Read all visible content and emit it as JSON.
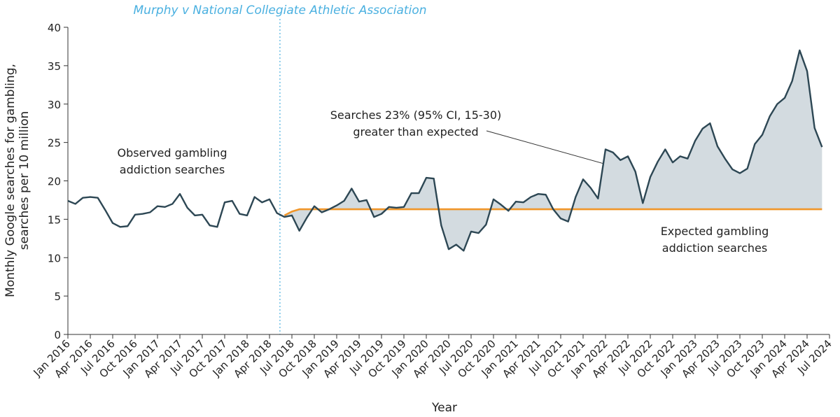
{
  "chart_data": {
    "type": "line",
    "xlabel": "Year",
    "ylabel": [
      "Monthly Google searches for gambling,",
      "searches per 10 million"
    ],
    "event_label": "Murphy v National Collegiate Athletic Association",
    "annotations": {
      "observed": [
        "Observed gambling",
        "addiction searches"
      ],
      "excess": [
        "Searches 23% (95% CI, 15-30)",
        "greater than expected"
      ],
      "expected": [
        "Expected gambling",
        "addiction searches"
      ]
    },
    "categories": [
      "Jan 2016",
      null,
      null,
      "Apr 2016",
      null,
      null,
      "Jul 2016",
      null,
      null,
      "Oct 2016",
      null,
      null,
      "Jan 2017",
      null,
      null,
      "Apr 2017",
      null,
      null,
      "Jul 2017",
      null,
      null,
      "Oct 2017",
      null,
      null,
      "Jan 2018",
      null,
      null,
      "Apr 2018",
      null,
      null,
      "Jul 2018",
      null,
      null,
      "Oct 2018",
      null,
      null,
      "Jan 2019",
      null,
      null,
      "Apr 2019",
      null,
      null,
      "Jul 2019",
      null,
      null,
      "Oct 2019",
      null,
      null,
      "Jan 2020",
      null,
      null,
      "Apr 2020",
      null,
      null,
      "Jul 2020",
      null,
      null,
      "Oct 2020",
      null,
      null,
      "Jan 2021",
      null,
      null,
      "Apr 2021",
      null,
      null,
      "Jul 2021",
      null,
      null,
      "Oct 2021",
      null,
      null,
      "Jan 2022",
      null,
      null,
      "Apr 2022",
      null,
      null,
      "Jul 2022",
      null,
      null,
      "Oct 2022",
      null,
      null,
      "Jan 2023",
      null,
      null,
      "Apr 2023",
      null,
      null,
      "Jul 2023",
      null,
      null,
      "Oct 2023",
      null,
      null,
      "Jan 2024",
      null,
      null,
      "Apr 2024",
      null,
      null,
      "Jul 2024"
    ],
    "series": [
      {
        "name": "Observed",
        "color": "#2d4754",
        "values": [
          17.4,
          17.0,
          17.8,
          17.9,
          17.8,
          16.2,
          14.5,
          14.0,
          14.1,
          15.6,
          15.7,
          15.9,
          16.7,
          16.6,
          17.0,
          18.3,
          16.5,
          15.5,
          15.6,
          14.2,
          14.0,
          17.2,
          17.4,
          15.7,
          15.5,
          17.9,
          17.2,
          17.6,
          15.8,
          15.3,
          15.5,
          13.5,
          15.2,
          16.7,
          15.9,
          16.3,
          16.8,
          17.4,
          19.0,
          17.3,
          17.5,
          15.3,
          15.7,
          16.6,
          16.5,
          16.6,
          18.4,
          18.4,
          20.4,
          20.3,
          14.2,
          11.1,
          11.7,
          10.9,
          13.4,
          13.2,
          14.3,
          17.6,
          16.9,
          16.1,
          17.3,
          17.2,
          17.9,
          18.3,
          18.2,
          16.3,
          15.1,
          14.7,
          17.9,
          20.2,
          19.1,
          17.7,
          24.1,
          23.7,
          22.7,
          23.2,
          21.2,
          17.1,
          20.5,
          22.5,
          24.1,
          22.4,
          23.2,
          22.9,
          25.2,
          26.8,
          27.5,
          24.5,
          22.9,
          21.5,
          21.0,
          21.6,
          24.8,
          26.0,
          28.4,
          30.0,
          30.8,
          33.0,
          37.0,
          34.3,
          26.9,
          24.4,
          null
        ]
      },
      {
        "name": "Expected",
        "color": "#f0962a",
        "values": [
          null,
          null,
          null,
          null,
          null,
          null,
          null,
          null,
          null,
          null,
          null,
          null,
          null,
          null,
          null,
          null,
          null,
          null,
          null,
          null,
          null,
          null,
          null,
          null,
          null,
          null,
          null,
          null,
          null,
          15.5,
          16.0,
          16.3,
          16.3,
          16.3,
          16.3,
          16.3,
          16.3,
          16.3,
          16.3,
          16.3,
          16.3,
          16.3,
          16.3,
          16.3,
          16.3,
          16.3,
          16.3,
          16.3,
          16.3,
          16.3,
          16.3,
          16.3,
          16.3,
          16.3,
          16.3,
          16.3,
          16.3,
          16.3,
          16.3,
          16.3,
          16.3,
          16.3,
          16.3,
          16.3,
          16.3,
          16.3,
          16.3,
          16.3,
          16.3,
          16.3,
          16.3,
          16.3,
          16.3,
          16.3,
          16.3,
          16.3,
          16.3,
          16.3,
          16.3,
          16.3,
          16.3,
          16.3,
          16.3,
          16.3,
          16.3,
          16.3,
          16.3,
          16.3,
          16.3,
          16.3,
          16.3,
          16.3,
          16.3,
          16.3,
          16.3,
          16.3,
          16.3,
          16.3,
          16.3,
          16.3,
          16.3,
          16.3,
          null
        ]
      }
    ],
    "fill_color": "#d3dbe0",
    "event_color": "#4ab0e0",
    "ylim": [
      0,
      40
    ],
    "yticks": [
      0,
      5,
      10,
      15,
      20,
      25,
      30,
      35,
      40
    ],
    "grid": false
  }
}
